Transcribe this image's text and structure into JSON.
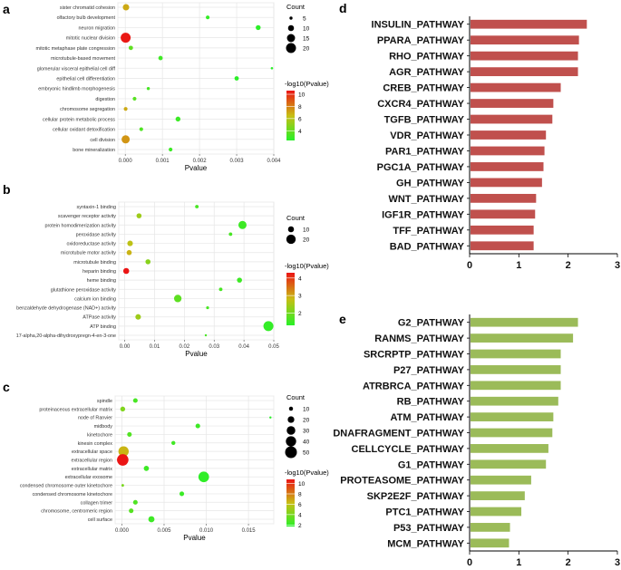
{
  "chart_data": [
    {
      "type": "scatter",
      "panel_label": "a",
      "xlabel": "Pvalue",
      "xlim": [
        -0.0002,
        0.004
      ],
      "xticks": [
        "0.000",
        "0.001",
        "0.002",
        "0.003",
        "0.004"
      ],
      "xtick_values": [
        0,
        0.001,
        0.002,
        0.003,
        0.004
      ],
      "size_legend_title": "Count",
      "size_legend": [
        5,
        10,
        15,
        20
      ],
      "color_legend_title": "-log10(Pvalue)",
      "color_range": [
        2.4,
        10.6
      ],
      "color_legend_ticks": [
        10,
        8,
        6,
        4
      ],
      "categories": [
        "sister chromatid cohesion",
        "olfactory bulb development",
        "neuron migration",
        "mitotic nuclear division",
        "mitotic metaphase plate congression",
        "microtubule-based movement",
        "glomerular visceral epithelial cell diff",
        "epithelial cell differentiation",
        "embryonic hindlimb morphogenesis",
        "digestion",
        "chromosome segregation",
        "cellular protein metabolic process",
        "cellular oxidant detoxification",
        "cell division",
        "bone mineralization"
      ],
      "x": [
        2e-05,
        0.00222,
        0.00358,
        1e-05,
        0.00015,
        0.00095,
        0.00395,
        0.003,
        0.00062,
        0.00025,
        1e-05,
        0.00142,
        0.00043,
        1e-05,
        0.00122
      ],
      "count": [
        11,
        6,
        8,
        20,
        7,
        7,
        4,
        7,
        5,
        6,
        6,
        8,
        6,
        15,
        6
      ],
      "neglog10p": [
        7,
        2.7,
        2.5,
        10.5,
        3.8,
        3.0,
        2.4,
        2.5,
        3.2,
        3.6,
        7,
        2.9,
        3.4,
        7.5,
        2.9
      ]
    },
    {
      "type": "scatter",
      "panel_label": "b",
      "xlabel": "Pvalue",
      "xlim": [
        -0.002,
        0.05
      ],
      "xticks": [
        "0.00",
        "0.01",
        "0.02",
        "0.03",
        "0.04",
        "0.05"
      ],
      "xtick_values": [
        0,
        0.01,
        0.02,
        0.03,
        0.04,
        0.05
      ],
      "size_legend_title": "Count",
      "size_legend": [
        10,
        20
      ],
      "color_legend_title": "-log10(Pvalue)",
      "color_range": [
        1.3,
        4.3
      ],
      "color_legend_ticks": [
        4,
        3,
        2
      ],
      "categories": [
        "syntaxin-1 binding",
        "scavenger receptor activity",
        "protein homodimerization activity",
        "peroxidase activity",
        "oxidoreductase activity",
        "microtubule motor activity",
        "microtubule binding",
        "heparin binding",
        "heme binding",
        "glutathione peroxidase activity",
        "calcium ion binding",
        "benzaldehyde dehydrogenase (NAD+) activity",
        "ATPase activity",
        "ATP binding",
        "17-alpha,20-alpha-dihydroxypregn-4-en-3-one"
      ],
      "x": [
        0.0242,
        0.0048,
        0.0395,
        0.0355,
        0.0018,
        0.0015,
        0.0078,
        0.0005,
        0.0385,
        0.0322,
        0.0178,
        0.0278,
        0.0045,
        0.0482,
        0.0272
      ],
      "count": [
        5,
        8,
        16,
        5,
        9,
        8,
        8,
        10,
        8,
        5,
        14,
        4,
        9,
        22,
        3
      ],
      "neglog10p": [
        1.6,
        2.4,
        1.5,
        1.6,
        2.7,
        2.9,
        2.2,
        4.3,
        1.5,
        1.6,
        1.8,
        1.6,
        2.4,
        1.4,
        1.6
      ]
    },
    {
      "type": "scatter",
      "panel_label": "c",
      "xlabel": "Pvalue",
      "xlim": [
        -0.0008,
        0.018
      ],
      "xticks": [
        "0.000",
        "0.005",
        "0.010",
        "0.015"
      ],
      "xtick_values": [
        0,
        0.005,
        0.01,
        0.015
      ],
      "size_legend_title": "Count",
      "size_legend": [
        10,
        20,
        30,
        40,
        50
      ],
      "color_legend_title": "-log10(Pvalue)",
      "color_range": [
        1.7,
        10.8
      ],
      "color_legend_ticks": [
        10,
        8,
        6,
        4,
        2
      ],
      "categories": [
        "spindle",
        "proteinaceous extracellular matrix",
        "node of Ranvier",
        "midbody",
        "kinetochore",
        "kinesin complex",
        "extracellular space",
        "extracellular region",
        "extracellular matrix",
        "extracellular exosome",
        "condensed chromosome outer kinetochore",
        "condensed chromosome kinetochore",
        "collagen trimer",
        "chromosome, centromeric region",
        "cell surface"
      ],
      "x": [
        0.0016,
        0.0001,
        0.0176,
        0.009,
        0.0009,
        0.0061,
        0.0002,
        0.0001,
        0.0029,
        0.0097,
        0.0001,
        0.0071,
        0.0016,
        0.0011,
        0.0035
      ],
      "count": [
        12,
        13,
        5,
        12,
        12,
        10,
        40,
        48,
        14,
        42,
        6,
        12,
        12,
        12,
        18
      ],
      "neglog10p": [
        2.6,
        4.2,
        1.7,
        2.3,
        2.9,
        2.4,
        6.5,
        10.8,
        2.3,
        1.9,
        4.0,
        2.2,
        2.8,
        3.0,
        2.3
      ]
    },
    {
      "type": "bar",
      "orientation": "horizontal",
      "panel_label": "d",
      "color": "#c0504d",
      "categories": [
        "INSULIN_PATHWAY",
        "PPARA_PATHWAY",
        "RHO_PATHWAY",
        "AGR_PATHWAY",
        "CREB_PATHWAY",
        "CXCR4_PATHWAY",
        "TGFB_PATHWAY",
        "VDR_PATHWAY",
        "PAR1_PATHWAY",
        "PGC1A_PATHWAY",
        "GH_PATHWAY",
        "WNT_PATHWAY",
        "IGF1R_PATHWAY",
        "TFF_PATHWAY",
        "BAD_PATHWAY"
      ],
      "values": [
        2.38,
        2.22,
        2.2,
        2.2,
        1.85,
        1.7,
        1.68,
        1.55,
        1.52,
        1.5,
        1.47,
        1.35,
        1.33,
        1.3,
        1.3
      ],
      "xlim": [
        0,
        3
      ],
      "xticks": [
        "0",
        "1",
        "2",
        "3"
      ]
    },
    {
      "type": "bar",
      "orientation": "horizontal",
      "panel_label": "e",
      "color": "#9bbb59",
      "categories": [
        "G2_PATHWAY",
        "RANMS_PATHWAY",
        "SRCRPTP_PATHWAY",
        "P27_PATHWAY",
        "ATRBRCA_PATHWAY",
        "RB_PATHWAY",
        "ATM_PATHWAY",
        "DNAFRAGMENT_PATHWAY",
        "CELLCYCLE_PATHWAY",
        "G1_PATHWAY",
        "PROTEASOME_PATHWAY",
        "SKP2E2F_PATHWAY",
        "PTC1_PATHWAY",
        "P53_PATHWAY",
        "MCM_PATHWAY"
      ],
      "values": [
        2.2,
        2.1,
        1.85,
        1.85,
        1.85,
        1.8,
        1.7,
        1.68,
        1.6,
        1.55,
        1.25,
        1.12,
        1.05,
        0.82,
        0.8
      ],
      "xlim": [
        0,
        3
      ],
      "xticks": [
        "0",
        "1",
        "2",
        "3"
      ]
    }
  ]
}
